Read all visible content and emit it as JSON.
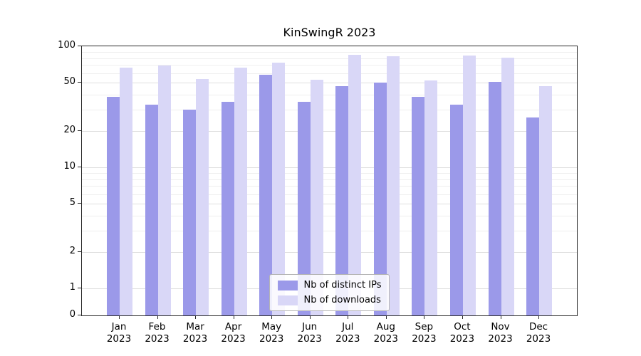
{
  "chart_data": {
    "type": "bar",
    "title": "KinSwingR 2023",
    "categories": [
      "Jan",
      "Feb",
      "Mar",
      "Apr",
      "May",
      "Jun",
      "Jul",
      "Aug",
      "Sep",
      "Oct",
      "Nov",
      "Dec"
    ],
    "year": "2023",
    "series": [
      {
        "name": "Nb of distinct IPs",
        "color": "#9b99e9",
        "values": [
          38,
          33,
          30,
          35,
          58,
          35,
          47,
          50,
          38,
          33,
          51,
          26
        ]
      },
      {
        "name": "Nb of downloads",
        "color": "#d9d7f7",
        "values": [
          67,
          69,
          54,
          67,
          73,
          53,
          85,
          83,
          52,
          84,
          81,
          47
        ]
      }
    ],
    "yscale": "symlog",
    "yticks": [
      0,
      1,
      2,
      5,
      10,
      20,
      50,
      100
    ],
    "yticks_minor": [
      3,
      4,
      6,
      7,
      8,
      9,
      30,
      40,
      60,
      70,
      80,
      90
    ],
    "ylim": [
      0,
      100
    ],
    "grid": true,
    "legend_position": "lower center"
  }
}
